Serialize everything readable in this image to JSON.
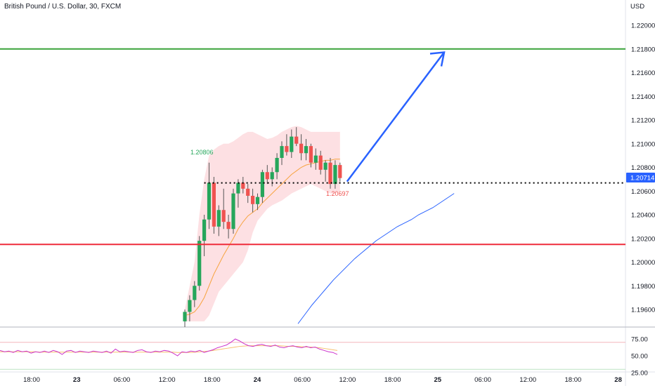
{
  "header": {
    "symbol_title": "British Pound / U.S. Dollar, 30, FXCM",
    "currency": "USD"
  },
  "colors": {
    "up": "#26a65b",
    "down": "#ef5350",
    "support": "#ef2b3a",
    "resistance": "#3aa33a",
    "arrow": "#2962ff",
    "band_fill": "#fde0e3",
    "ma_fast": "#f7a440",
    "ma_slow": "#2962ff",
    "rsi": "#cc33cc",
    "rsi_ma": "#f7c070",
    "price_badge": "#2962ff"
  },
  "chart_data": {
    "type": "candlestick",
    "symbol": "GBPUSD",
    "timeframe": "30",
    "y_axis": {
      "min": 1.195,
      "max": 1.222,
      "ticks": [
        "1.22000",
        "1.21800",
        "1.21600",
        "1.21400",
        "1.21200",
        "1.21000",
        "1.20800",
        "1.20600",
        "1.20400",
        "1.20200",
        "1.20000",
        "1.19800",
        "1.19600"
      ]
    },
    "x_axis": {
      "labels": [
        "18:00",
        "23",
        "06:00",
        "12:00",
        "18:00",
        "24",
        "06:00",
        "12:00",
        "18:00",
        "25",
        "06:00",
        "12:00",
        "18:00",
        "28"
      ]
    },
    "candles": [
      [
        1.195,
        1.196,
        1.194,
        1.1958
      ],
      [
        1.1958,
        1.1972,
        1.195,
        1.1968
      ],
      [
        1.1968,
        1.1984,
        1.1962,
        1.198
      ],
      [
        1.198,
        1.2022,
        1.1976,
        1.2018
      ],
      [
        1.2018,
        1.204,
        1.2005,
        1.2036
      ],
      [
        1.2036,
        1.2084,
        1.2028,
        1.2067
      ],
      [
        1.2067,
        1.2072,
        1.2024,
        1.203
      ],
      [
        1.203,
        1.2048,
        1.2022,
        1.2044
      ],
      [
        1.2044,
        1.2062,
        1.2028,
        1.2034
      ],
      [
        1.2034,
        1.204,
        1.202,
        1.2028
      ],
      [
        1.2028,
        1.2062,
        1.2024,
        1.2058
      ],
      [
        1.2058,
        1.207,
        1.2046,
        1.2067
      ],
      [
        1.2067,
        1.2072,
        1.2058,
        1.2062
      ],
      [
        1.2062,
        1.2066,
        1.205,
        1.2056
      ],
      [
        1.2056,
        1.2062,
        1.2042,
        1.2049
      ],
      [
        1.2049,
        1.2058,
        1.2044,
        1.2055
      ],
      [
        1.2055,
        1.2078,
        1.205,
        1.2076
      ],
      [
        1.2076,
        1.2082,
        1.2066,
        1.207
      ],
      [
        1.207,
        1.208,
        1.2064,
        1.2076
      ],
      [
        1.2076,
        1.2092,
        1.207,
        1.2088
      ],
      [
        1.2088,
        1.2102,
        1.2082,
        1.2098
      ],
      [
        1.2098,
        1.2108,
        1.209,
        1.2093
      ],
      [
        1.2093,
        1.2112,
        1.2088,
        1.2106
      ],
      [
        1.2106,
        1.2114,
        1.2098,
        1.21
      ],
      [
        1.21,
        1.2108,
        1.2086,
        1.2092
      ],
      [
        1.2092,
        1.2104,
        1.2086,
        1.2098
      ],
      [
        1.2098,
        1.21,
        1.208,
        1.2084
      ],
      [
        1.2084,
        1.2096,
        1.2078,
        1.209
      ],
      [
        1.209,
        1.2094,
        1.2074,
        1.2078
      ],
      [
        1.2078,
        1.2086,
        1.2068,
        1.2084
      ],
      [
        1.2084,
        1.2088,
        1.2062,
        1.2066
      ],
      [
        1.2066,
        1.2086,
        1.2062,
        1.2082
      ],
      [
        1.2082,
        1.2084,
        1.2068,
        1.2071
      ]
    ],
    "band_upper": [
      1.196,
      1.198,
      1.2,
      1.204,
      1.207,
      1.209,
      1.2095,
      1.2098,
      1.21,
      1.21,
      1.2102,
      1.2105,
      1.2108,
      1.211,
      1.211,
      1.2108,
      1.2106,
      1.2104,
      1.2105,
      1.2107,
      1.211,
      1.2112,
      1.2114,
      1.2115,
      1.2114,
      1.2112,
      1.211,
      1.211,
      1.211,
      1.211,
      1.211,
      1.211,
      1.211
    ],
    "band_lower": [
      1.195,
      1.195,
      1.195,
      1.195,
      1.195,
      1.1955,
      1.1965,
      1.1975,
      1.198,
      1.1985,
      1.199,
      1.1995,
      1.2,
      1.201,
      1.2025,
      1.2035,
      1.204,
      1.2045,
      1.2048,
      1.205,
      1.2052,
      1.2055,
      1.2058,
      1.206,
      1.2062,
      1.2064,
      1.2066,
      1.2064,
      1.2062,
      1.206,
      1.2058,
      1.2058,
      1.206
    ],
    "ma_fast": [
      1.1955,
      1.1956,
      1.1958,
      1.1963,
      1.197,
      1.198,
      1.199,
      1.1998,
      1.2006,
      1.2013,
      1.202,
      1.2028,
      1.2034,
      1.2039,
      1.2042,
      1.2045,
      1.205,
      1.2054,
      1.2058,
      1.2062,
      1.2066,
      1.207,
      1.2074,
      1.2077,
      1.208,
      1.2082,
      1.2083,
      1.2084,
      1.2085,
      1.2086,
      1.2086,
      1.2087,
      1.2087
    ],
    "ma_slow": [
      null,
      null,
      null,
      null,
      null,
      null,
      null,
      null,
      null,
      null,
      1.1948,
      1.1956,
      1.1964,
      1.1971,
      1.1978,
      1.1985,
      1.1991,
      1.1997,
      1.2003,
      1.2008,
      1.2013,
      1.2018,
      1.2022,
      1.2026,
      1.203,
      1.2033,
      1.2036,
      1.204,
      1.2043,
      1.2046,
      1.205,
      1.2054,
      1.2058
    ],
    "support_level": 1.2015,
    "resistance_level": 1.218,
    "current_price": 1.20714,
    "current_price_label": "1.20714",
    "high_label": "1.20806",
    "low_label": "1.20697",
    "projection_target": 1.21772,
    "rsi": {
      "ticks": [
        "75.00",
        "50.00",
        "25.00"
      ],
      "upper_band": 70,
      "lower_band": 30,
      "values": [
        58,
        56,
        57,
        55,
        58,
        56,
        57,
        54,
        56,
        55,
        57,
        55,
        58,
        56,
        52,
        57,
        58,
        55,
        57,
        56,
        55,
        57,
        56,
        55,
        57,
        54,
        60,
        56,
        57,
        56,
        55,
        58,
        59,
        56,
        55,
        57,
        56,
        58,
        57,
        54,
        50,
        56,
        55,
        57,
        56,
        58,
        55,
        57,
        59,
        62,
        64,
        66,
        70,
        75,
        72,
        68,
        65,
        64,
        66,
        67,
        65,
        64,
        66,
        63,
        62,
        64,
        65,
        63,
        62,
        64,
        62,
        63,
        60,
        58,
        56,
        55,
        52
      ],
      "ma": [
        56,
        56,
        56,
        56,
        56,
        56,
        56,
        56,
        56,
        55.5,
        55.5,
        55.5,
        55.5,
        55.5,
        55.5,
        55.5,
        55.5,
        55.5,
        55.5,
        55.5,
        55.5,
        55.5,
        55.5,
        55.5,
        55.5,
        55.5,
        55.5,
        55.5,
        55.5,
        55.5,
        55.5,
        55.5,
        55.5,
        55.5,
        55.5,
        55.5,
        55.5,
        55.5,
        55.5,
        55.5,
        55,
        55,
        55,
        55,
        55.5,
        56,
        56.5,
        57,
        58,
        59,
        60,
        61,
        62,
        63,
        64,
        64.5,
        65,
        65,
        65,
        65,
        65,
        65,
        65,
        65,
        64.5,
        64,
        64,
        64,
        63.5,
        63,
        63,
        62.5,
        62,
        61,
        60,
        59,
        58
      ]
    }
  }
}
